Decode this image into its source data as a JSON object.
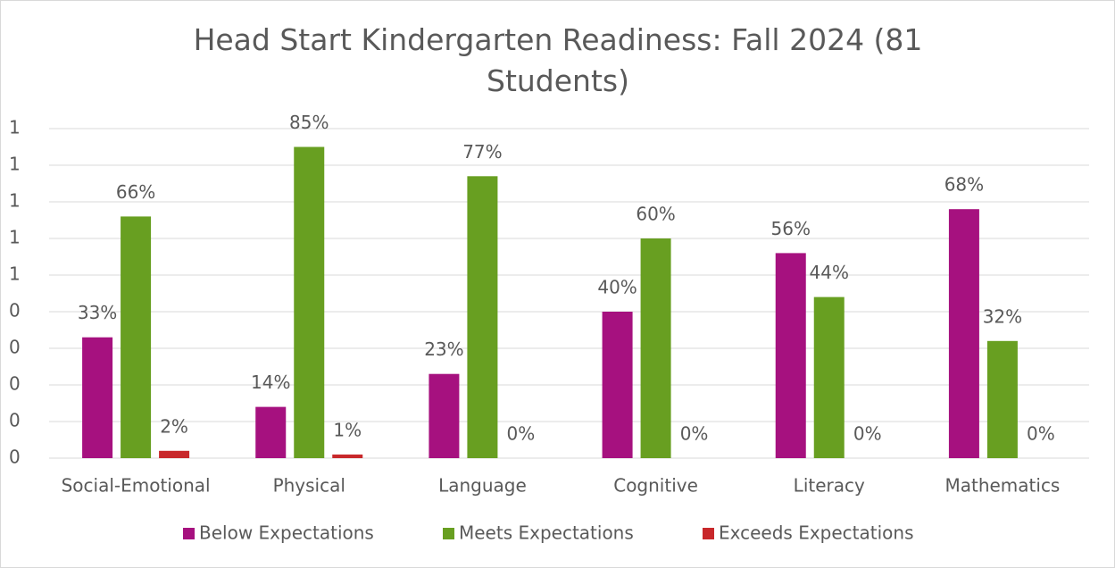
{
  "chart_data": {
    "type": "bar",
    "title": "Head Start Kindergarten Readiness: Fall 2024 (81 Students)",
    "categories": [
      "Social-Emotional",
      "Physical",
      "Language",
      "Cognitive",
      "Literacy",
      "Mathematics"
    ],
    "series": [
      {
        "name": "Below Expectations",
        "color": "#a6117f",
        "values": [
          0.33,
          0.14,
          0.23,
          0.4,
          0.56,
          0.68
        ],
        "value_labels": [
          "33%",
          "14%",
          "23%",
          "40%",
          "56%",
          "68%"
        ]
      },
      {
        "name": "Meets Expectations",
        "color": "#689f21",
        "values": [
          0.66,
          0.85,
          0.77,
          0.6,
          0.44,
          0.32
        ],
        "value_labels": [
          "66%",
          "85%",
          "77%",
          "60%",
          "44%",
          "32%"
        ]
      },
      {
        "name": "Exceeds Expectations",
        "color": "#c8282b",
        "values": [
          0.02,
          0.01,
          0,
          0,
          0,
          0
        ],
        "value_labels": [
          "2%",
          "1%",
          "0%",
          "0%",
          "0%",
          "0%"
        ]
      }
    ],
    "ylim": [
      0,
      0.9
    ],
    "yticks": [
      0,
      {
        "value": 0.1,
        "label": "0"
      },
      {
        "value": 0.2,
        "label": "0"
      },
      {
        "value": 0.3,
        "label": "0"
      },
      {
        "value": 0.4,
        "label": "0"
      },
      {
        "value": 0.5,
        "label": "1"
      },
      {
        "value": 0.6,
        "label": "1"
      },
      {
        "value": 0.7,
        "label": "1"
      },
      {
        "value": 0.8,
        "label": "1"
      },
      {
        "value": 0.9,
        "label": "1"
      }
    ],
    "grid": true,
    "legend": "bottom"
  }
}
